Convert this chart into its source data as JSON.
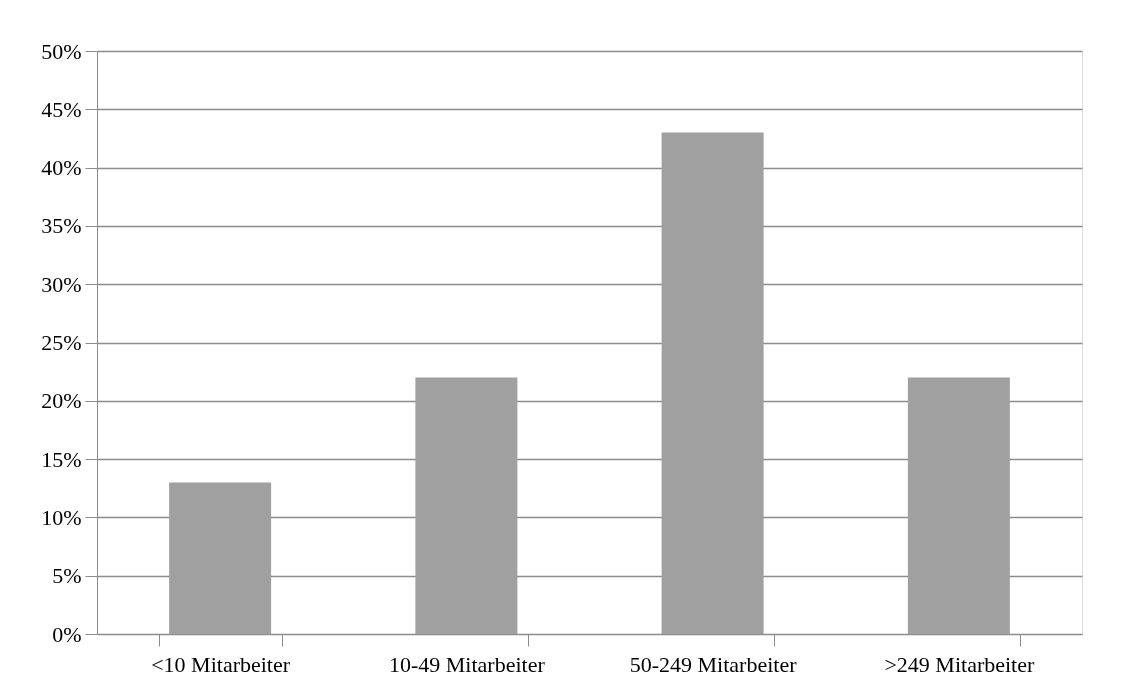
{
  "chart_data": {
    "type": "bar",
    "categories": [
      "<10 Mitarbeiter",
      "10-49 Mitarbeiter",
      "50-249 Mitarbeiter",
      ">249 Mitarbeiter"
    ],
    "values": [
      13,
      22,
      43,
      22
    ],
    "color": "#a0a0a0",
    "ylim": [
      0,
      50
    ],
    "yticks": [
      {
        "value": 0,
        "label": "0%"
      },
      {
        "value": 5,
        "label": "5%"
      },
      {
        "value": 10,
        "label": "10%"
      },
      {
        "value": 15,
        "label": "15%"
      },
      {
        "value": 20,
        "label": "20%"
      },
      {
        "value": 25,
        "label": "25%"
      },
      {
        "value": 30,
        "label": "30%"
      },
      {
        "value": 35,
        "label": "35%"
      },
      {
        "value": 40,
        "label": "40%"
      },
      {
        "value": 45,
        "label": "45%"
      },
      {
        "value": 50,
        "label": "50%"
      }
    ],
    "grid": "y"
  }
}
